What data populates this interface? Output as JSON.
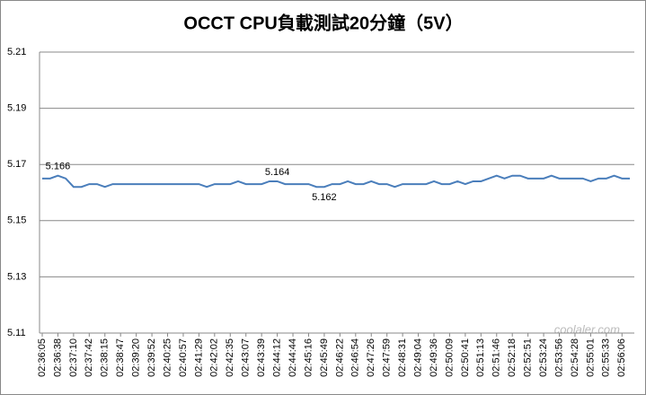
{
  "chart_data": {
    "type": "line",
    "title": "OCCT CPU負載測試20分鐘（5V）",
    "categories": [
      "02:36:05",
      null,
      "02:36:38",
      null,
      "02:37:10",
      null,
      "02:37:42",
      null,
      "02:38:15",
      null,
      "02:38:47",
      null,
      "02:39:20",
      null,
      "02:39:52",
      null,
      "02:40:25",
      null,
      "02:40:57",
      null,
      "02:41:29",
      null,
      "02:42:02",
      null,
      "02:42:35",
      null,
      "02:43:07",
      null,
      "02:43:39",
      null,
      "02:44:12",
      null,
      "02:44:44",
      null,
      "02:45:16",
      null,
      "02:45:49",
      null,
      "02:46:22",
      null,
      "02:46:54",
      null,
      "02:47:26",
      null,
      "02:47:59",
      null,
      "02:48:31",
      null,
      "02:49:04",
      null,
      "02:49:36",
      null,
      "02:50:09",
      null,
      "02:50:41",
      null,
      "02:51:13",
      null,
      "02:51:46",
      null,
      "02:52:18",
      null,
      "02:52:51",
      null,
      "02:53:24",
      null,
      "02:53:56",
      null,
      "02:54:28",
      null,
      "02:55:01",
      null,
      "02:55:33",
      null,
      "02:56:06",
      null
    ],
    "series": [
      {
        "color": "#4a7ebb",
        "values": [
          5.165,
          5.165,
          5.166,
          5.165,
          5.162,
          5.162,
          5.163,
          5.163,
          5.162,
          5.163,
          5.163,
          5.163,
          5.163,
          5.163,
          5.163,
          5.163,
          5.163,
          5.163,
          5.163,
          5.163,
          5.163,
          5.162,
          5.163,
          5.163,
          5.163,
          5.164,
          5.163,
          5.163,
          5.163,
          5.164,
          5.164,
          5.163,
          5.163,
          5.163,
          5.163,
          5.162,
          5.162,
          5.163,
          5.163,
          5.164,
          5.163,
          5.163,
          5.164,
          5.163,
          5.163,
          5.162,
          5.163,
          5.163,
          5.163,
          5.163,
          5.164,
          5.163,
          5.163,
          5.164,
          5.163,
          5.164,
          5.164,
          5.165,
          5.166,
          5.165,
          5.166,
          5.166,
          5.165,
          5.165,
          5.165,
          5.166,
          5.165,
          5.165,
          5.165,
          5.165,
          5.164,
          5.165,
          5.165,
          5.166,
          5.165,
          5.165
        ],
        "value_labels": [
          null,
          null,
          "5.166",
          null,
          null,
          null,
          null,
          null,
          null,
          null,
          null,
          null,
          null,
          null,
          null,
          null,
          null,
          null,
          null,
          null,
          null,
          null,
          null,
          null,
          null,
          null,
          null,
          null,
          null,
          null,
          "5.164",
          null,
          null,
          null,
          null,
          null,
          "5.162",
          null,
          null,
          null,
          null,
          null,
          null,
          null,
          null,
          null,
          null,
          null,
          null,
          null,
          null,
          null,
          null,
          null,
          null,
          null,
          null,
          null,
          null,
          null,
          null,
          null,
          null,
          null,
          null,
          null,
          null,
          null,
          null,
          null,
          null,
          null,
          null,
          null,
          null,
          null
        ]
      }
    ],
    "ylim": [
      5.11,
      5.21
    ],
    "yticks": [
      5.11,
      5.13,
      5.15,
      5.17,
      5.19,
      5.21
    ],
    "grid": true,
    "watermark": "coolaler.com"
  }
}
